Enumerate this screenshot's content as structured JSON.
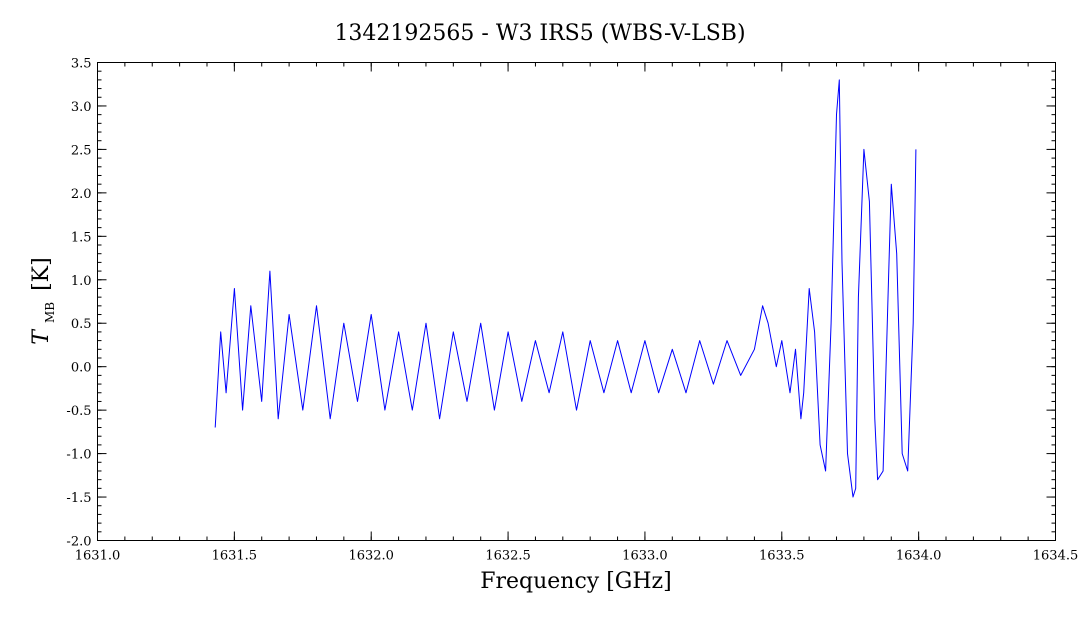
{
  "chart_data": {
    "type": "line",
    "title": "1342192565 - W3 IRS5 (WBS-V-LSB)",
    "xlabel": "Frequency [GHz]",
    "ylabel": {
      "symbol": "T",
      "subscript": "MB",
      "unit": "[K]"
    },
    "xlim": [
      1631.0,
      1634.5
    ],
    "ylim": [
      -2.0,
      3.5
    ],
    "xticks": [
      "1631.0",
      "1631.5",
      "1632.0",
      "1632.5",
      "1633.0",
      "1633.5",
      "1634.0",
      "1634.5"
    ],
    "yticks": [
      "-2.0",
      "-1.5",
      "-1.0",
      "-0.5",
      "0.0",
      "0.5",
      "1.0",
      "1.5",
      "2.0",
      "2.5",
      "3.0",
      "3.5"
    ],
    "x_minor_step": 0.1,
    "y_minor_step": 0.1,
    "grid": false,
    "series": [
      {
        "color": "#0000ff",
        "x": [
          1631.43,
          1631.45,
          1631.47,
          1631.5,
          1631.53,
          1631.56,
          1631.6,
          1631.63,
          1631.66,
          1631.7,
          1631.75,
          1631.8,
          1631.85,
          1631.9,
          1631.95,
          1632.0,
          1632.05,
          1632.1,
          1632.15,
          1632.2,
          1632.25,
          1632.3,
          1632.35,
          1632.4,
          1632.45,
          1632.5,
          1632.55,
          1632.6,
          1632.65,
          1632.7,
          1632.75,
          1632.8,
          1632.85,
          1632.9,
          1632.95,
          1633.0,
          1633.05,
          1633.1,
          1633.15,
          1633.2,
          1633.25,
          1633.3,
          1633.35,
          1633.4,
          1633.43,
          1633.45,
          1633.48,
          1633.5,
          1633.53,
          1633.55,
          1633.57,
          1633.58,
          1633.6,
          1633.62,
          1633.64,
          1633.66,
          1633.68,
          1633.7,
          1633.71,
          1633.72,
          1633.74,
          1633.76,
          1633.77,
          1633.78,
          1633.8,
          1633.82,
          1633.84,
          1633.85,
          1633.87,
          1633.89,
          1633.9,
          1633.92,
          1633.94,
          1633.96,
          1633.98,
          1633.99
        ],
        "y": [
          -0.7,
          0.4,
          -0.3,
          0.9,
          -0.5,
          0.7,
          -0.4,
          1.1,
          -0.6,
          0.6,
          -0.5,
          0.7,
          -0.6,
          0.5,
          -0.4,
          0.6,
          -0.5,
          0.4,
          -0.5,
          0.5,
          -0.6,
          0.4,
          -0.4,
          0.5,
          -0.5,
          0.4,
          -0.4,
          0.3,
          -0.3,
          0.4,
          -0.5,
          0.3,
          -0.3,
          0.3,
          -0.3,
          0.3,
          -0.3,
          0.2,
          -0.3,
          0.3,
          -0.2,
          0.3,
          -0.1,
          0.2,
          0.7,
          0.5,
          0.0,
          0.3,
          -0.3,
          0.2,
          -0.6,
          -0.3,
          0.9,
          0.4,
          -0.9,
          -1.2,
          0.5,
          2.9,
          3.3,
          1.2,
          -1.0,
          -1.5,
          -1.4,
          0.8,
          2.5,
          1.9,
          -0.6,
          -1.3,
          -1.2,
          1.0,
          2.1,
          1.3,
          -1.0,
          -1.2,
          0.5,
          2.5
        ]
      }
    ]
  }
}
